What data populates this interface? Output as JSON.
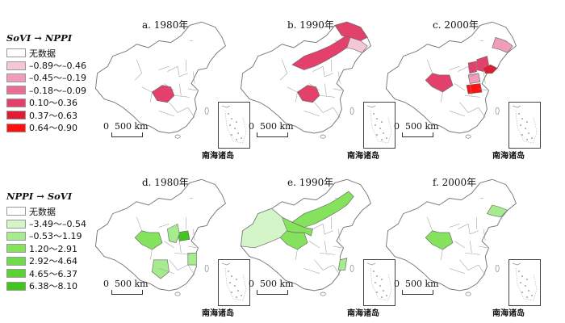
{
  "legends": {
    "top": {
      "title": "SoVI → NPPI",
      "items": [
        {
          "label": "无数据",
          "color": "#ffffff"
        },
        {
          "label": "–0.89～–0.46",
          "color": "#f4c6d6"
        },
        {
          "label": "–0.45～–0.19",
          "color": "#ef9dba"
        },
        {
          "label": "–0.18～–0.09",
          "color": "#ea6c93"
        },
        {
          "label": "0.10～0.36",
          "color": "#e3416b"
        },
        {
          "label": "0.37～0.63",
          "color": "#e01c33"
        },
        {
          "label": "0.64～0.90",
          "color": "#ff1010"
        }
      ]
    },
    "bottom": {
      "title": "NPPI → SoVI",
      "items": [
        {
          "label": "无数据",
          "color": "#ffffff"
        },
        {
          "label": "–3.49～–0.54",
          "color": "#d4f5c8"
        },
        {
          "label": "–0.53～1.19",
          "color": "#a6ec8f"
        },
        {
          "label": "1.20～2.91",
          "color": "#84e25c"
        },
        {
          "label": "2.92～4.64",
          "color": "#6ddc48"
        },
        {
          "label": "4.65～6.37",
          "color": "#58d331"
        },
        {
          "label": "6.38～8.10",
          "color": "#3fc81c"
        }
      ]
    }
  },
  "panels": [
    {
      "label": "a. 1980年",
      "scale": "0  500 km",
      "inset": "南海诸岛",
      "highlights": [
        {
          "region": "sichuan",
          "color": "#e3416b"
        }
      ]
    },
    {
      "label": "b. 1990年",
      "scale": "0  500 km",
      "inset": "南海诸岛",
      "highlights": [
        {
          "region": "inner-mongolia",
          "color": "#e3416b"
        },
        {
          "region": "heilongjiang",
          "color": "#e3416b"
        },
        {
          "region": "jilin",
          "color": "#f4c6d6"
        },
        {
          "region": "sichuan",
          "color": "#e3416b"
        }
      ]
    },
    {
      "label": "c. 2000年",
      "scale": "0  500 km",
      "inset": "南海诸岛",
      "highlights": [
        {
          "region": "qinghai",
          "color": "#e3416b"
        },
        {
          "region": "jilin",
          "color": "#ef9dba"
        },
        {
          "region": "shanxi",
          "color": "#e3416b"
        },
        {
          "region": "hebei",
          "color": "#e3416b"
        },
        {
          "region": "shandong",
          "color": "#e01c33"
        },
        {
          "region": "henan",
          "color": "#ef9dba"
        },
        {
          "region": "hubei",
          "color": "#ff1010"
        }
      ]
    },
    {
      "label": "d. 1980年",
      "scale": "0  500 km",
      "inset": "南海诸岛",
      "highlights": [
        {
          "region": "qinghai",
          "color": "#84e25c"
        },
        {
          "region": "henan",
          "color": "#3fc81c"
        },
        {
          "region": "shaanxi",
          "color": "#a6ec8f"
        },
        {
          "region": "yunnan",
          "color": "#a6ec8f"
        },
        {
          "region": "jiangxi",
          "color": "#a6ec8f"
        }
      ]
    },
    {
      "label": "e. 1990年",
      "scale": "0  500 km",
      "inset": "南海诸岛",
      "highlights": [
        {
          "region": "xinjiang",
          "color": "#d4f5c8"
        },
        {
          "region": "qinghai",
          "color": "#84e25c"
        },
        {
          "region": "gansu",
          "color": "#84e25c"
        },
        {
          "region": "inner-mongolia",
          "color": "#84e25c"
        },
        {
          "region": "fujian",
          "color": "#a6ec8f"
        }
      ]
    },
    {
      "label": "f. 2000年",
      "scale": "0  500 km",
      "inset": "南海诸岛",
      "highlights": [
        {
          "region": "qinghai",
          "color": "#84e25c"
        },
        {
          "region": "liaoning",
          "color": "#a6ec8f"
        }
      ]
    }
  ]
}
